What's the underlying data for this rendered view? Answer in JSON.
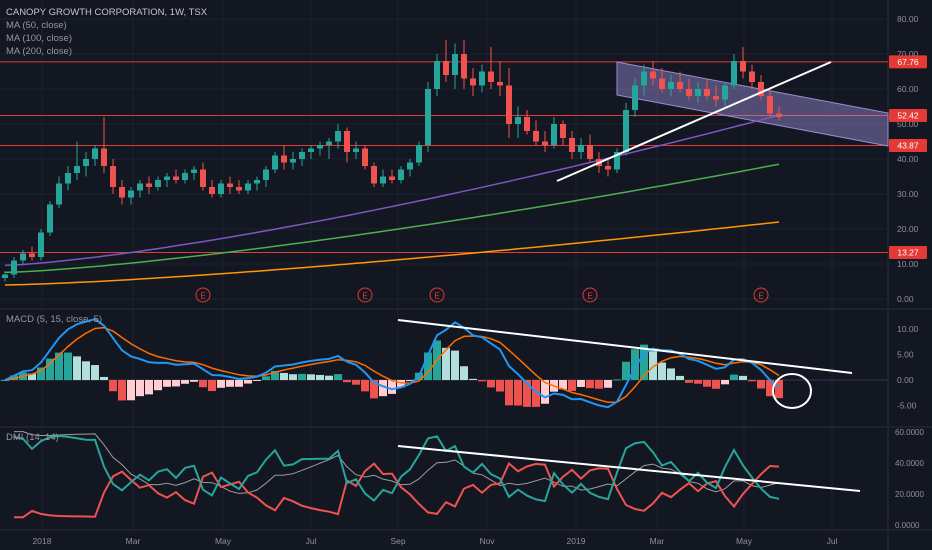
{
  "header": {
    "title": "CANOPY GROWTH CORPORATION, 1W, TSX",
    "ma_lines": [
      "MA (50, close)",
      "MA (100, close)",
      "MA (200, close)"
    ]
  },
  "colors": {
    "background": "#131722",
    "grid": "#1e222d",
    "up": "#26a69a",
    "down": "#ef5350",
    "ma50": "#7e57c2",
    "ma100": "#4caf50",
    "ma200": "#ff9800",
    "hline": "#e53935",
    "macd": "#2196f3",
    "signal": "#ff6d00",
    "dmi_plus": "#26a69a",
    "dmi_minus": "#ef5350",
    "adx": "#9e9e9e",
    "channel": "#9c8fd6",
    "trendline": "#ffffff"
  },
  "price_axis": {
    "ticks": [
      "80.00",
      "70.00",
      "60.00",
      "50.00",
      "40.00",
      "30.00",
      "20.00",
      "10.00",
      "0.00"
    ]
  },
  "price_badges": [
    {
      "label": "67.76",
      "value": 67.76
    },
    {
      "label": "52.42",
      "value": 52.42
    },
    {
      "label": "43.87",
      "value": 43.87
    },
    {
      "label": "13.27",
      "value": 13.27
    }
  ],
  "macd_header": "MACD (5, 15, close, 5)",
  "macd_axis": {
    "ticks": [
      "10.00",
      "5.00",
      "0.00",
      "-5.00"
    ]
  },
  "dmi_header": "DMI (14, 14)",
  "dmi_axis": {
    "ticks": [
      "60.0000",
      "40.0000",
      "20.0000",
      "0.0000"
    ]
  },
  "time_axis": {
    "labels": [
      "2018",
      "Mar",
      "May",
      "Jul",
      "Sep",
      "Nov",
      "2019",
      "Mar",
      "May",
      "Jul"
    ]
  },
  "earnings_marker": "E",
  "chart_data": {
    "type": "candlestick",
    "title": "CANOPY GROWTH CORPORATION, 1W, TSX",
    "interval": "1W",
    "horizontal_levels": [
      67.76,
      52.42,
      43.87,
      13.27
    ],
    "ylim": [
      0,
      80
    ],
    "earnings_weeks": [
      22,
      40,
      48,
      65,
      84
    ],
    "candles": [
      [
        6,
        8,
        5,
        7
      ],
      [
        7,
        12,
        6,
        11
      ],
      [
        11,
        14,
        10,
        13
      ],
      [
        13,
        15,
        11,
        12
      ],
      [
        12,
        20,
        11,
        19
      ],
      [
        19,
        28,
        18,
        27
      ],
      [
        27,
        35,
        26,
        33
      ],
      [
        33,
        38,
        31,
        36
      ],
      [
        36,
        45,
        34,
        38
      ],
      [
        38,
        42,
        35,
        40
      ],
      [
        40,
        44,
        38,
        43
      ],
      [
        43,
        52,
        36,
        38
      ],
      [
        38,
        40,
        30,
        32
      ],
      [
        32,
        34,
        27,
        29
      ],
      [
        29,
        32,
        27,
        31
      ],
      [
        31,
        34,
        29,
        33
      ],
      [
        33,
        35,
        30,
        32
      ],
      [
        32,
        35,
        31,
        34
      ],
      [
        34,
        36,
        32,
        35
      ],
      [
        35,
        37,
        33,
        34
      ],
      [
        34,
        37,
        33,
        36
      ],
      [
        36,
        38,
        34,
        37
      ],
      [
        37,
        39,
        31,
        32
      ],
      [
        32,
        34,
        29,
        30
      ],
      [
        30,
        34,
        29,
        33
      ],
      [
        33,
        35,
        30,
        32
      ],
      [
        32,
        34,
        30,
        31
      ],
      [
        31,
        34,
        30,
        33
      ],
      [
        33,
        35,
        31,
        34
      ],
      [
        34,
        38,
        32,
        37
      ],
      [
        37,
        42,
        36,
        41
      ],
      [
        41,
        44,
        37,
        39
      ],
      [
        39,
        42,
        37,
        40
      ],
      [
        40,
        43,
        38,
        42
      ],
      [
        42,
        44,
        40,
        43
      ],
      [
        43,
        45,
        41,
        44
      ],
      [
        44,
        46,
        40,
        45
      ],
      [
        45,
        50,
        43,
        48
      ],
      [
        48,
        49,
        39,
        42
      ],
      [
        42,
        45,
        40,
        43
      ],
      [
        43,
        44,
        37,
        38
      ],
      [
        38,
        39,
        32,
        33
      ],
      [
        33,
        37,
        32,
        35
      ],
      [
        35,
        37,
        33,
        34
      ],
      [
        34,
        38,
        33,
        37
      ],
      [
        37,
        40,
        35,
        39
      ],
      [
        39,
        45,
        38,
        44
      ],
      [
        44,
        62,
        42,
        60
      ],
      [
        60,
        70,
        58,
        68
      ],
      [
        68,
        74,
        62,
        64
      ],
      [
        64,
        73,
        60,
        70
      ],
      [
        70,
        74,
        60,
        63
      ],
      [
        63,
        66,
        58,
        61
      ],
      [
        61,
        67,
        59,
        65
      ],
      [
        65,
        72,
        60,
        62
      ],
      [
        62,
        68,
        58,
        61
      ],
      [
        61,
        66,
        46,
        50
      ],
      [
        50,
        55,
        46,
        52
      ],
      [
        52,
        54,
        47,
        48
      ],
      [
        48,
        51,
        44,
        45
      ],
      [
        45,
        48,
        42,
        44
      ],
      [
        44,
        52,
        43,
        50
      ],
      [
        50,
        51,
        44,
        46
      ],
      [
        46,
        48,
        40,
        42
      ],
      [
        42,
        46,
        40,
        44
      ],
      [
        44,
        47,
        39,
        40
      ],
      [
        40,
        42,
        36,
        38
      ],
      [
        38,
        40,
        35,
        37
      ],
      [
        37,
        43,
        36,
        42
      ],
      [
        42,
        56,
        41,
        54
      ],
      [
        54,
        63,
        52,
        61
      ],
      [
        61,
        67,
        58,
        65
      ],
      [
        65,
        68,
        61,
        63
      ],
      [
        63,
        66,
        59,
        60
      ],
      [
        60,
        64,
        58,
        62
      ],
      [
        62,
        65,
        59,
        60
      ],
      [
        60,
        63,
        57,
        58
      ],
      [
        58,
        62,
        56,
        60
      ],
      [
        60,
        63,
        57,
        58
      ],
      [
        58,
        61,
        55,
        57
      ],
      [
        57,
        62,
        55,
        61
      ],
      [
        61,
        70,
        60,
        68
      ],
      [
        68,
        72,
        63,
        65
      ],
      [
        65,
        67,
        60,
        62
      ],
      [
        62,
        64,
        57,
        58
      ],
      [
        58,
        60,
        52,
        53
      ],
      [
        53,
        55,
        51,
        52
      ]
    ],
    "ma50": {
      "start": 9.6,
      "end": 52.5
    },
    "ma100": {
      "start": 7.6,
      "end": 38.5
    },
    "ma200": {
      "start": 4.0,
      "end": 22.0
    }
  }
}
